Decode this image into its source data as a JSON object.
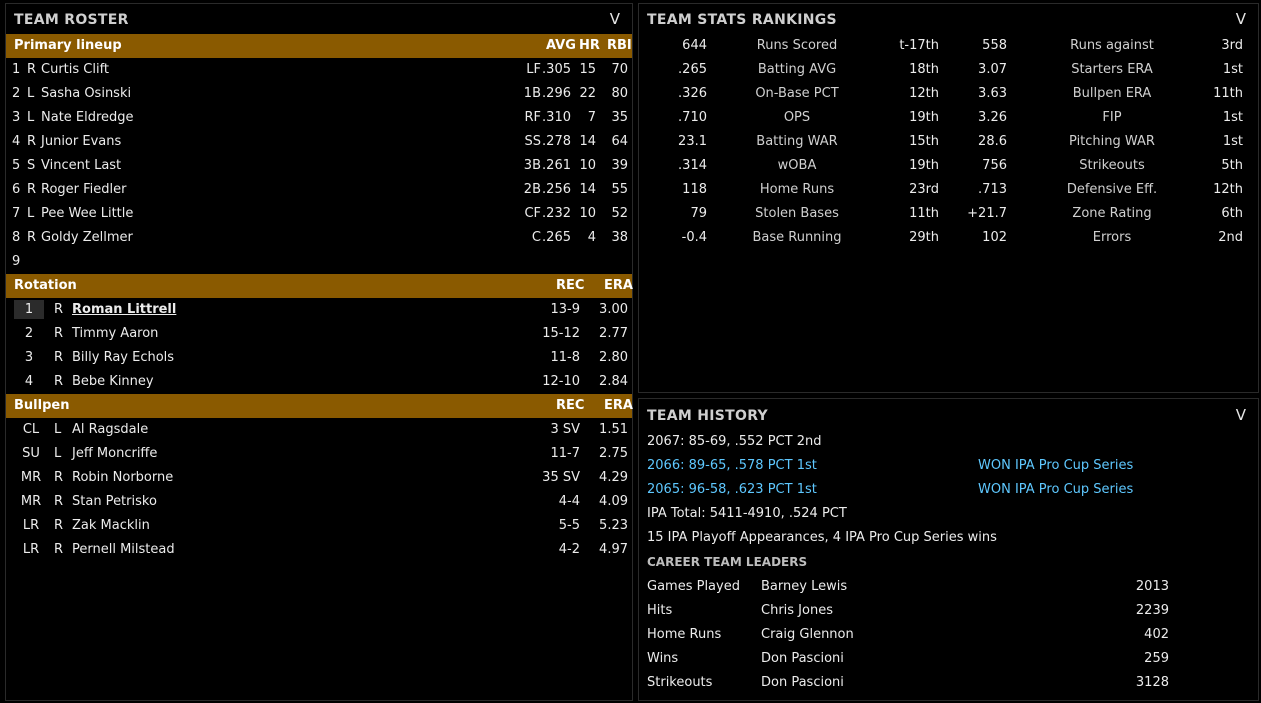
{
  "roster": {
    "title": "TEAM ROSTER",
    "primary": {
      "label": "Primary lineup",
      "cols": [
        "AVG",
        "HR",
        "RBI"
      ],
      "rows": [
        {
          "num": "1",
          "hand": "R",
          "name": "Curtis Clift",
          "pos": "LF",
          "avg": ".305",
          "hr": "15",
          "rbi": "70"
        },
        {
          "num": "2",
          "hand": "L",
          "name": "Sasha Osinski",
          "pos": "1B",
          "avg": ".296",
          "hr": "22",
          "rbi": "80"
        },
        {
          "num": "3",
          "hand": "L",
          "name": "Nate Eldredge",
          "pos": "RF",
          "avg": ".310",
          "hr": "7",
          "rbi": "35"
        },
        {
          "num": "4",
          "hand": "R",
          "name": "Junior Evans",
          "pos": "SS",
          "avg": ".278",
          "hr": "14",
          "rbi": "64"
        },
        {
          "num": "5",
          "hand": "S",
          "name": "Vincent Last",
          "pos": "3B",
          "avg": ".261",
          "hr": "10",
          "rbi": "39"
        },
        {
          "num": "6",
          "hand": "R",
          "name": "Roger Fiedler",
          "pos": "2B",
          "avg": ".256",
          "hr": "14",
          "rbi": "55"
        },
        {
          "num": "7",
          "hand": "L",
          "name": "Pee Wee Little",
          "pos": "CF",
          "avg": ".232",
          "hr": "10",
          "rbi": "52"
        },
        {
          "num": "8",
          "hand": "R",
          "name": "Goldy Zellmer",
          "pos": "C",
          "avg": ".265",
          "hr": "4",
          "rbi": "38"
        },
        {
          "num": "9",
          "hand": "",
          "name": "",
          "pos": "",
          "avg": "",
          "hr": "",
          "rbi": ""
        }
      ]
    },
    "rotation": {
      "label": "Rotation",
      "cols": [
        "REC",
        "ERA"
      ],
      "rows": [
        {
          "num": "1",
          "hand": "R",
          "name": "Roman Littrell",
          "rec": "13-9",
          "era": "3.00"
        },
        {
          "num": "2",
          "hand": "R",
          "name": "Timmy Aaron",
          "rec": "15-12",
          "era": "2.77"
        },
        {
          "num": "3",
          "hand": "R",
          "name": "Billy Ray Echols",
          "rec": "11-8",
          "era": "2.80"
        },
        {
          "num": "4",
          "hand": "R",
          "name": "Bebe Kinney",
          "rec": "12-10",
          "era": "2.84"
        }
      ]
    },
    "bullpen": {
      "label": "Bullpen",
      "cols": [
        "REC",
        "ERA"
      ],
      "rows": [
        {
          "role": "CL",
          "hand": "L",
          "name": "Al Ragsdale",
          "rec": "3 SV",
          "era": "1.51"
        },
        {
          "role": "SU",
          "hand": "L",
          "name": "Jeff Moncriffe",
          "rec": "11-7",
          "era": "2.75"
        },
        {
          "role": "MR",
          "hand": "R",
          "name": "Robin Norborne",
          "rec": "35 SV",
          "era": "4.29"
        },
        {
          "role": "MR",
          "hand": "R",
          "name": "Stan Petrisko",
          "rec": "4-4",
          "era": "4.09"
        },
        {
          "role": "LR",
          "hand": "R",
          "name": "Zak Macklin",
          "rec": "5-5",
          "era": "5.23"
        },
        {
          "role": "LR",
          "hand": "R",
          "name": "Pernell Milstead",
          "rec": "4-2",
          "era": "4.97"
        }
      ]
    }
  },
  "stats": {
    "title": "TEAM STATS RANKINGS",
    "rows": [
      {
        "v1": "644",
        "l1": "Runs Scored",
        "r1": "t-17th",
        "v2": "558",
        "l2": "Runs against",
        "r2": "3rd"
      },
      {
        "v1": ".265",
        "l1": "Batting AVG",
        "r1": "18th",
        "v2": "3.07",
        "l2": "Starters ERA",
        "r2": "1st"
      },
      {
        "v1": ".326",
        "l1": "On-Base PCT",
        "r1": "12th",
        "v2": "3.63",
        "l2": "Bullpen ERA",
        "r2": "11th"
      },
      {
        "v1": ".710",
        "l1": "OPS",
        "r1": "19th",
        "v2": "3.26",
        "l2": "FIP",
        "r2": "1st"
      },
      {
        "v1": "23.1",
        "l1": "Batting WAR",
        "r1": "15th",
        "v2": "28.6",
        "l2": "Pitching WAR",
        "r2": "1st"
      },
      {
        "v1": ".314",
        "l1": "wOBA",
        "r1": "19th",
        "v2": "756",
        "l2": "Strikeouts",
        "r2": "5th"
      },
      {
        "v1": "118",
        "l1": "Home Runs",
        "r1": "23rd",
        "v2": ".713",
        "l2": "Defensive Eff.",
        "r2": "12th"
      },
      {
        "v1": "79",
        "l1": "Stolen Bases",
        "r1": "11th",
        "v2": "+21.7",
        "l2": "Zone Rating",
        "r2": "6th"
      },
      {
        "v1": "-0.4",
        "l1": "Base Running",
        "r1": "29th",
        "v2": "102",
        "l2": "Errors",
        "r2": "2nd"
      }
    ]
  },
  "history": {
    "title": "TEAM HISTORY",
    "seasons": [
      {
        "text": "2067: 85-69, .552 PCT 2nd",
        "award": ""
      },
      {
        "text": "2066: 89-65, .578 PCT 1st",
        "award": "WON IPA Pro Cup Series"
      },
      {
        "text": "2065: 96-58, .623 PCT 1st",
        "award": "WON IPA Pro Cup Series"
      }
    ],
    "total": "IPA Total: 5411-4910, .524 PCT",
    "playoffs": "15 IPA Playoff Appearances, 4 IPA Pro Cup Series wins",
    "leaders_title": "CAREER TEAM LEADERS",
    "leaders": [
      {
        "cat": "Games Played",
        "name": "Barney Lewis",
        "val": "2013"
      },
      {
        "cat": "Hits",
        "name": "Chris Jones",
        "val": "2239"
      },
      {
        "cat": "Home Runs",
        "name": "Craig Glennon",
        "val": "402"
      },
      {
        "cat": "Wins",
        "name": "Don Pascioni",
        "val": "259"
      },
      {
        "cat": "Strikeouts",
        "name": "Don Pascioni",
        "val": "3128"
      }
    ]
  },
  "icons": {
    "collapse": "chevron-down-icon"
  },
  "colors": {
    "section_bar": "#8a5a00",
    "link": "#5ec8ff"
  },
  "chevron": "V"
}
